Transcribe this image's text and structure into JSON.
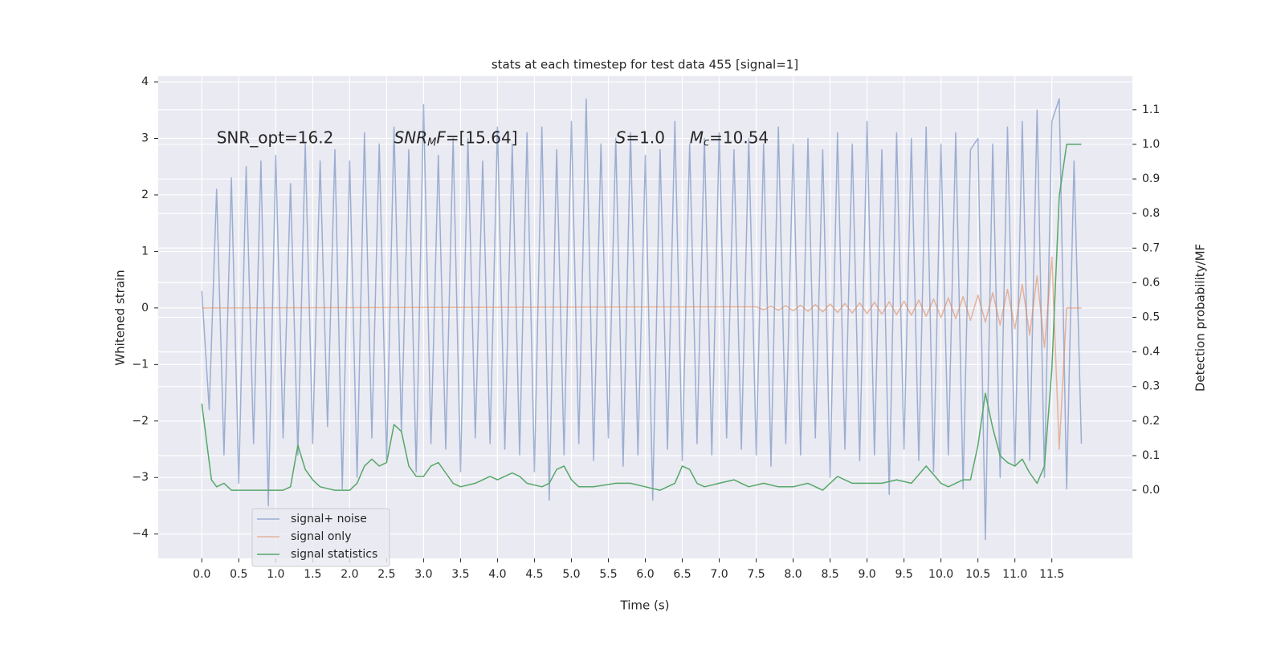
{
  "chart_data": {
    "type": "line",
    "title": "stats at each timestep for test data 455 [signal=1]",
    "xlabel": "Time (s)",
    "ylabel": "Whitened strain",
    "y2label": "Detection probability/MF",
    "xlim": [
      -0.59,
      12.59
    ],
    "ylim": [
      -4.43,
      4.1
    ],
    "y2lim": [
      -0.197,
      1.197
    ],
    "xticks": [
      {
        "value": 0,
        "label": "0.0"
      },
      0.5,
      {
        "value": 1,
        "label": "1.0"
      },
      1.5,
      {
        "value": 2,
        "label": "2.0"
      },
      2.5,
      {
        "value": 3,
        "label": "3.0"
      },
      3.5,
      {
        "value": 4,
        "label": "4.0"
      },
      4.5,
      {
        "value": 5,
        "label": "5.0"
      },
      5.5,
      {
        "value": 6,
        "label": "6.0"
      },
      6.5,
      {
        "value": 7,
        "label": "7.0"
      },
      7.5,
      {
        "value": 8,
        "label": "8.0"
      },
      8.5,
      {
        "value": 9,
        "label": "9.0"
      },
      9.5,
      {
        "value": 10,
        "label": "10.0"
      },
      10.5,
      {
        "value": 11,
        "label": "11.0"
      },
      11.5
    ],
    "yticks": [
      {
        "value": -4,
        "label": "−4"
      },
      {
        "value": -3,
        "label": "−3"
      },
      {
        "value": -2,
        "label": "−2"
      },
      {
        "value": -1,
        "label": "−1"
      },
      0,
      1,
      2,
      3,
      4
    ],
    "y2ticks": [
      {
        "value": 0,
        "label": "0.0"
      },
      0.1,
      0.2,
      0.3,
      0.4,
      0.5,
      0.6,
      0.7,
      0.8,
      0.9,
      {
        "value": 1,
        "label": "1.0"
      },
      1.1
    ],
    "grid": true,
    "legend": "lower left",
    "annotations": [
      {
        "x": 0.2,
        "y": 3.0,
        "parts": [
          {
            "text": "SNR_opt=16.2"
          }
        ]
      },
      {
        "x": 2.6,
        "y": 3.0,
        "parts": [
          {
            "text": "SNR",
            "italic": true
          },
          {
            "text": "M",
            "italic": true,
            "sub": true
          },
          {
            "text": "F",
            "italic": true
          },
          {
            "text": "=[15.64]"
          }
        ]
      },
      {
        "x": 5.6,
        "y": 3.0,
        "parts": [
          {
            "text": "S",
            "italic": true
          },
          {
            "text": "=1.0"
          }
        ]
      },
      {
        "x": 6.6,
        "y": 3.0,
        "parts": [
          {
            "text": "M",
            "italic": true
          },
          {
            "text": "c",
            "italic": true,
            "sub": true
          },
          {
            "text": "=10.54"
          }
        ]
      }
    ],
    "series": [
      {
        "name": "signal+ noise",
        "color": "#4c72b0",
        "opacity": 0.5,
        "x": [
          0,
          0.1,
          0.2,
          0.3,
          0.4,
          0.5,
          0.6,
          0.7,
          0.8,
          0.9,
          1,
          1.1,
          1.2,
          1.3,
          1.4,
          1.5,
          1.6,
          1.7,
          1.8,
          1.9,
          2,
          2.1,
          2.2,
          2.3,
          2.4,
          2.5,
          2.6,
          2.7,
          2.8,
          2.9,
          3,
          3.1,
          3.2,
          3.3,
          3.4,
          3.5,
          3.6,
          3.7,
          3.8,
          3.9,
          4,
          4.1,
          4.2,
          4.3,
          4.4,
          4.5,
          4.6,
          4.7,
          4.8,
          4.9,
          5,
          5.1,
          5.2,
          5.3,
          5.4,
          5.5,
          5.6,
          5.7,
          5.8,
          5.9,
          6,
          6.1,
          6.2,
          6.3,
          6.4,
          6.5,
          6.6,
          6.7,
          6.8,
          6.9,
          7,
          7.1,
          7.2,
          7.3,
          7.4,
          7.5,
          7.6,
          7.7,
          7.8,
          7.9,
          8,
          8.1,
          8.2,
          8.3,
          8.4,
          8.5,
          8.6,
          8.7,
          8.8,
          8.9,
          9,
          9.1,
          9.2,
          9.3,
          9.4,
          9.5,
          9.6,
          9.7,
          9.8,
          9.9,
          10,
          10.1,
          10.2,
          10.3,
          10.4,
          10.5,
          10.6,
          10.7,
          10.8,
          10.9,
          11,
          11.1,
          11.2,
          11.3,
          11.4,
          11.5,
          11.6,
          11.7,
          11.8,
          11.9
        ],
        "values": [
          0.3,
          -1.8,
          2.1,
          -2.6,
          2.3,
          -3.1,
          2.5,
          -2.4,
          2.6,
          -3.5,
          2.7,
          -2.3,
          2.2,
          -2.6,
          2.9,
          -2.4,
          2.6,
          -2.1,
          2.8,
          -3.2,
          2.6,
          -3.0,
          3.1,
          -2.3,
          2.9,
          -2.7,
          3.2,
          -2.2,
          2.8,
          -2.9,
          3.6,
          -2.4,
          2.7,
          -2.5,
          3.0,
          -2.9,
          3.0,
          -2.3,
          2.6,
          -2.4,
          3.2,
          -2.5,
          2.9,
          -2.6,
          3.1,
          -2.9,
          3.2,
          -3.4,
          2.8,
          -2.6,
          3.3,
          -2.4,
          3.7,
          -2.7,
          2.9,
          -2.3,
          3.0,
          -2.8,
          3.1,
          -2.6,
          2.7,
          -3.4,
          2.8,
          -2.5,
          3.3,
          -2.7,
          2.9,
          -2.4,
          3.0,
          -2.6,
          3.1,
          -2.3,
          2.8,
          -2.5,
          3.0,
          -2.6,
          2.9,
          -2.8,
          3.2,
          -2.4,
          2.9,
          -2.6,
          3.0,
          -2.3,
          2.8,
          -3.0,
          3.1,
          -2.5,
          2.9,
          -2.7,
          3.3,
          -2.6,
          2.8,
          -3.3,
          3.1,
          -2.5,
          3.0,
          -2.7,
          3.2,
          -2.9,
          2.9,
          -2.6,
          3.1,
          -3.2,
          2.8,
          3.0,
          -4.1,
          2.9,
          -3.0,
          3.2,
          -2.8,
          3.3,
          -2.7,
          3.5,
          -3.0,
          3.3,
          3.7,
          -3.2,
          2.6,
          -2.4
        ]
      },
      {
        "name": "signal only",
        "color": "#dd8452",
        "opacity": 0.55,
        "x": [
          0,
          7.5,
          7.6,
          7.7,
          7.8,
          7.9,
          8,
          8.1,
          8.2,
          8.3,
          8.4,
          8.5,
          8.6,
          8.7,
          8.8,
          8.9,
          9,
          9.1,
          9.2,
          9.3,
          9.4,
          9.5,
          9.6,
          9.7,
          9.8,
          9.9,
          10,
          10.1,
          10.2,
          10.3,
          10.4,
          10.5,
          10.6,
          10.7,
          10.8,
          10.9,
          11,
          11.1,
          11.2,
          11.3,
          11.4,
          11.5,
          11.6,
          11.7,
          11.9
        ],
        "values": [
          0,
          0.02,
          -0.03,
          0.03,
          -0.04,
          0.04,
          -0.05,
          0.05,
          -0.06,
          0.06,
          -0.07,
          0.07,
          -0.08,
          0.08,
          -0.09,
          0.09,
          -0.1,
          0.1,
          -0.11,
          0.11,
          -0.12,
          0.12,
          -0.13,
          0.14,
          -0.15,
          0.16,
          -0.17,
          0.18,
          -0.19,
          0.2,
          -0.22,
          0.23,
          -0.25,
          0.27,
          -0.3,
          0.33,
          -0.37,
          0.42,
          -0.48,
          0.57,
          -0.7,
          0.9,
          -2.5,
          0,
          0
        ]
      },
      {
        "name": "signal statistics",
        "color": "#55a868",
        "opacity": 1,
        "axis": "y2",
        "x": [
          0,
          0.13,
          0.2,
          0.3,
          0.4,
          0.6,
          0.8,
          1.0,
          1.1,
          1.2,
          1.3,
          1.4,
          1.5,
          1.6,
          1.8,
          2.0,
          2.1,
          2.2,
          2.3,
          2.4,
          2.5,
          2.6,
          2.7,
          2.8,
          2.9,
          3.0,
          3.1,
          3.2,
          3.3,
          3.4,
          3.5,
          3.7,
          3.9,
          4.0,
          4.1,
          4.2,
          4.3,
          4.4,
          4.6,
          4.7,
          4.8,
          4.9,
          5.0,
          5.1,
          5.3,
          5.6,
          5.8,
          6.0,
          6.2,
          6.4,
          6.5,
          6.6,
          6.7,
          6.8,
          7.0,
          7.2,
          7.4,
          7.6,
          7.8,
          8.0,
          8.2,
          8.4,
          8.6,
          8.8,
          9.0,
          9.2,
          9.4,
          9.6,
          9.8,
          10.0,
          10.1,
          10.2,
          10.3,
          10.4,
          10.5,
          10.6,
          10.7,
          10.8,
          10.9,
          11.0,
          11.1,
          11.2,
          11.3,
          11.4,
          11.5,
          11.6,
          11.7,
          11.8,
          11.9
        ],
        "values": [
          0.25,
          0.03,
          0.01,
          0.02,
          0.0,
          0.0,
          0.0,
          0.0,
          0.0,
          0.01,
          0.13,
          0.06,
          0.03,
          0.01,
          0.0,
          0.0,
          0.02,
          0.07,
          0.09,
          0.07,
          0.08,
          0.19,
          0.17,
          0.07,
          0.04,
          0.04,
          0.07,
          0.08,
          0.05,
          0.02,
          0.01,
          0.02,
          0.04,
          0.03,
          0.04,
          0.05,
          0.04,
          0.02,
          0.01,
          0.02,
          0.06,
          0.07,
          0.03,
          0.01,
          0.01,
          0.02,
          0.02,
          0.01,
          0.0,
          0.02,
          0.07,
          0.06,
          0.02,
          0.01,
          0.02,
          0.03,
          0.01,
          0.02,
          0.01,
          0.01,
          0.02,
          0.0,
          0.04,
          0.02,
          0.02,
          0.02,
          0.03,
          0.02,
          0.07,
          0.02,
          0.01,
          0.02,
          0.03,
          0.03,
          0.13,
          0.28,
          0.18,
          0.1,
          0.08,
          0.07,
          0.09,
          0.05,
          0.02,
          0.07,
          0.35,
          0.85,
          1.0,
          1.0,
          1.0
        ]
      }
    ]
  }
}
